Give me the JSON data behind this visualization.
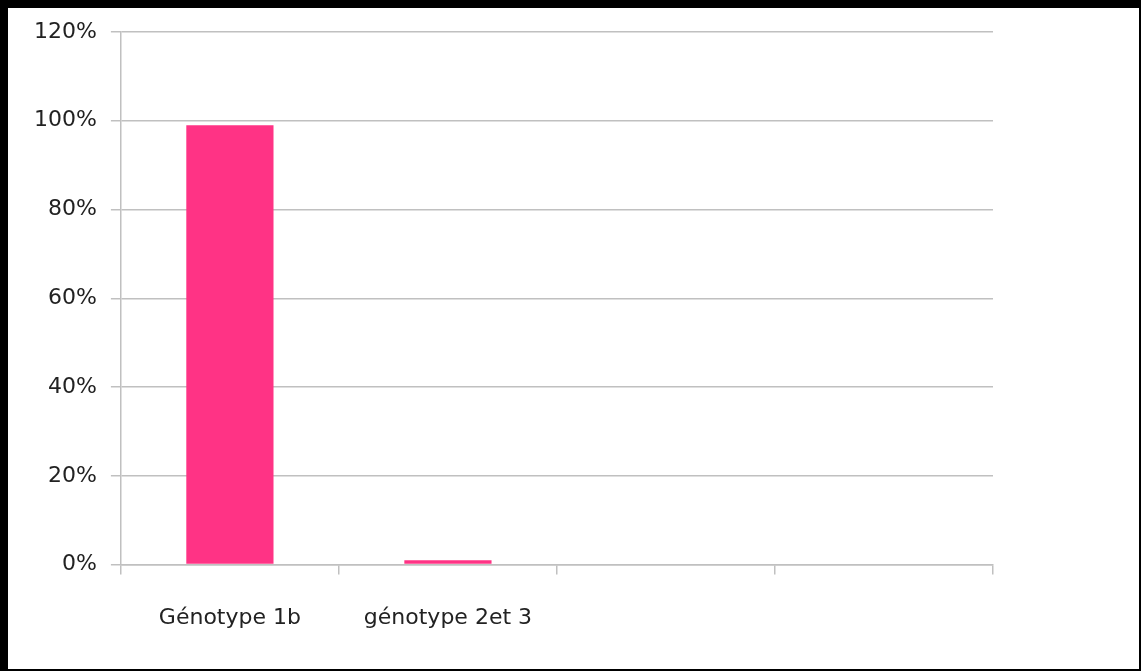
{
  "chart_data": {
    "type": "bar",
    "categories": [
      "Génotype 1b",
      "génotype 2et 3",
      null,
      null
    ],
    "values": [
      99,
      1,
      null,
      null
    ],
    "color": "#ff3385",
    "ylim": [
      0,
      120
    ],
    "yticks": [
      {
        "value": 0,
        "label": "0%"
      },
      {
        "value": 20,
        "label": "20%"
      },
      {
        "value": 40,
        "label": "40%"
      },
      {
        "value": 60,
        "label": "60%"
      },
      {
        "value": 80,
        "label": "80%"
      },
      {
        "value": 100,
        "label": "100%"
      },
      {
        "value": 120,
        "label": "120%"
      }
    ],
    "grid": "y",
    "legend": false
  }
}
